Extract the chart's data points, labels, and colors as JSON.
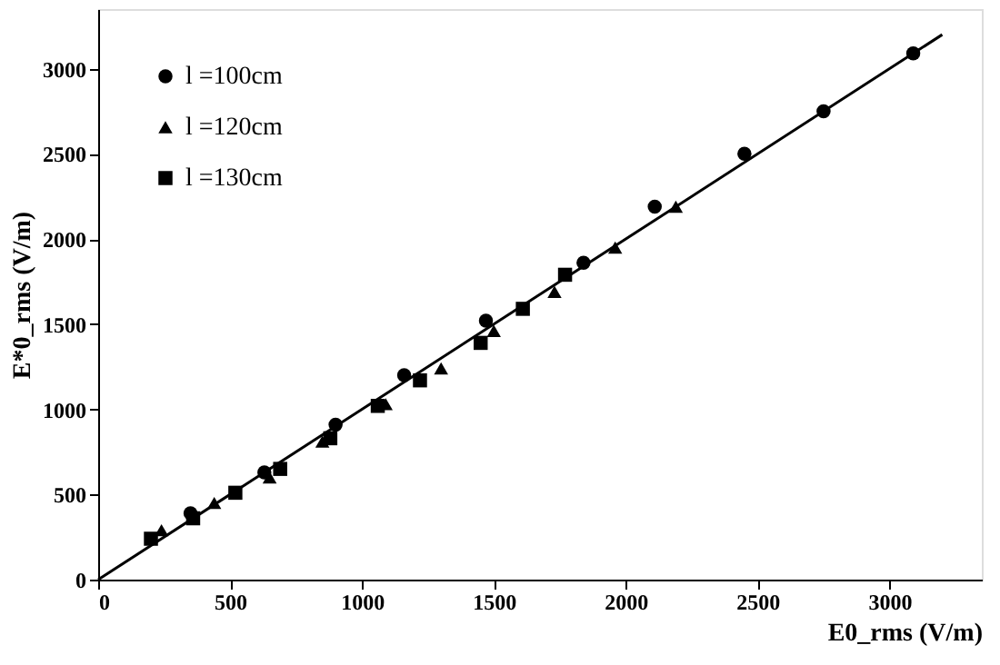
{
  "chart_data": {
    "type": "scatter",
    "xlabel": "E0_rms (V/m)",
    "ylabel": "E*0_rms (V/m)",
    "xlim": [
      0,
      3350
    ],
    "ylim": [
      0,
      3350
    ],
    "xticks": [
      0,
      500,
      1000,
      1500,
      2000,
      2500,
      3000
    ],
    "yticks": [
      0,
      500,
      1000,
      1500,
      2000,
      2500,
      3000
    ],
    "grid": false,
    "legend": "top left",
    "series": [
      {
        "name": "l =100cm",
        "color": "#000000",
        "marker": "circle",
        "x": [
          350,
          630,
          900,
          1160,
          1470,
          1840,
          2110,
          2450,
          2750,
          3090
        ],
        "values": [
          390,
          630,
          910,
          1200,
          1520,
          1860,
          2190,
          2500,
          2750,
          3090
        ]
      },
      {
        "name": "l =120cm",
        "color": "#000000",
        "marker": "triangle",
        "x": [
          240,
          440,
          650,
          850,
          1090,
          1300,
          1500,
          1730,
          1960,
          2190
        ],
        "values": [
          290,
          450,
          600,
          810,
          1030,
          1240,
          1460,
          1690,
          1950,
          2190
        ]
      },
      {
        "name": "l =130cm",
        "color": "#000000",
        "marker": "square",
        "x": [
          200,
          360,
          520,
          690,
          880,
          1060,
          1220,
          1450,
          1610,
          1770
        ],
        "values": [
          240,
          360,
          510,
          650,
          830,
          1020,
          1170,
          1390,
          1590,
          1790
        ]
      },
      {
        "type": "line",
        "color": "#000000",
        "marker": "none",
        "line_style": "solid",
        "x": [
          0,
          3200
        ],
        "values": [
          0,
          3200
        ]
      }
    ]
  }
}
